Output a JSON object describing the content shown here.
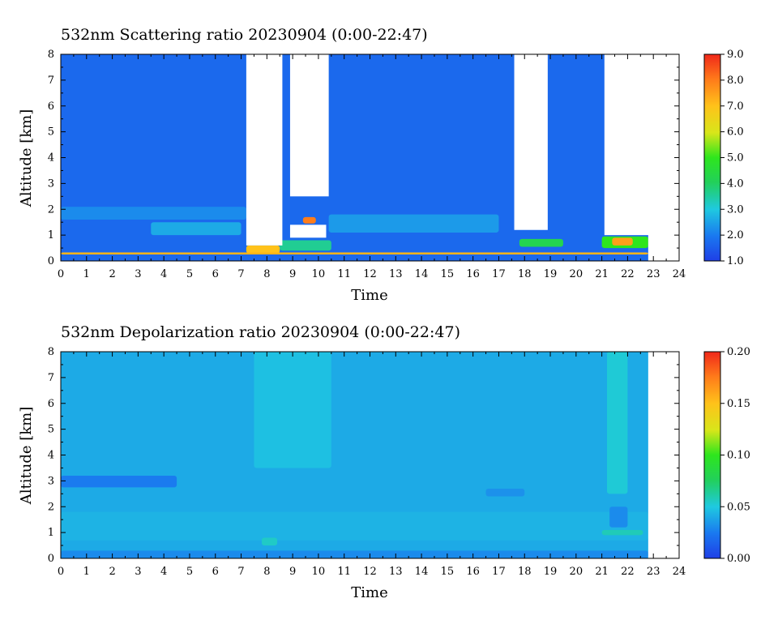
{
  "charts": [
    {
      "type": "heatmap",
      "title": "532nm Scattering ratio  20230904 (0:00-22:47)",
      "xlabel": "Time",
      "ylabel": "Altitude [km]",
      "x_range": [
        0,
        24
      ],
      "y_range": [
        0,
        8
      ],
      "x_ticks": [
        "0",
        "1",
        "2",
        "3",
        "4",
        "5",
        "6",
        "7",
        "8",
        "9",
        "10",
        "11",
        "12",
        "13",
        "14",
        "15",
        "16",
        "17",
        "18",
        "19",
        "20",
        "21",
        "22",
        "23",
        "24"
      ],
      "y_ticks": [
        "0",
        "1",
        "2",
        "3",
        "4",
        "5",
        "6",
        "7",
        "8"
      ],
      "colorbar": {
        "range": [
          1.0,
          9.0
        ],
        "ticks": [
          "1.0",
          "2.0",
          "3.0",
          "4.0",
          "5.0",
          "6.0",
          "7.0",
          "8.0",
          "9.0"
        ]
      },
      "background_value": 1.7,
      "no_data_regions": [
        {
          "t0": 7.2,
          "t1": 8.6,
          "z0": 0.6,
          "z1": 8.0
        },
        {
          "t0": 8.9,
          "t1": 10.4,
          "z0": 2.5,
          "z1": 8.0
        },
        {
          "t0": 8.9,
          "t1": 10.3,
          "z0": 0.9,
          "z1": 1.4
        },
        {
          "t0": 17.6,
          "t1": 18.9,
          "z0": 1.2,
          "z1": 8.0
        },
        {
          "t0": 21.1,
          "t1": 24.0,
          "z0": 1.0,
          "z1": 8.0
        },
        {
          "t0": 22.8,
          "t1": 24.0,
          "z0": 0.0,
          "z1": 8.0
        }
      ],
      "features": [
        {
          "t0": 0.0,
          "t1": 7.2,
          "z0": 1.6,
          "z1": 2.1,
          "value": 2.2
        },
        {
          "t0": 3.5,
          "t1": 7.0,
          "z0": 1.0,
          "z1": 1.5,
          "value": 2.6
        },
        {
          "t0": 10.4,
          "t1": 17.0,
          "z0": 1.1,
          "z1": 1.8,
          "value": 2.4
        },
        {
          "t0": 8.5,
          "t1": 10.5,
          "z0": 0.4,
          "z1": 0.8,
          "value": 3.6
        },
        {
          "t0": 17.8,
          "t1": 19.5,
          "z0": 0.55,
          "z1": 0.85,
          "value": 4.2
        },
        {
          "t0": 21.0,
          "t1": 22.8,
          "z0": 0.5,
          "z1": 0.95,
          "value": 5.0
        },
        {
          "t0": 21.4,
          "t1": 22.2,
          "z0": 0.6,
          "z1": 0.9,
          "value": 7.5
        },
        {
          "t0": 9.4,
          "t1": 9.9,
          "z0": 1.45,
          "z1": 1.7,
          "value": 8.0
        },
        {
          "t0": 7.2,
          "t1": 8.5,
          "z0": 0.3,
          "z1": 0.6,
          "value": 7.0
        },
        {
          "t0": 0.0,
          "t1": 22.8,
          "z0": 0.25,
          "z1": 0.33,
          "value": 7.2
        }
      ]
    },
    {
      "type": "heatmap",
      "title": "532nm Depolarization ratio  20230904 (0:00-22:47)",
      "xlabel": "Time",
      "ylabel": "Altitude [km]",
      "x_range": [
        0,
        24
      ],
      "y_range": [
        0,
        8
      ],
      "x_ticks": [
        "0",
        "1",
        "2",
        "3",
        "4",
        "5",
        "6",
        "7",
        "8",
        "9",
        "10",
        "11",
        "12",
        "13",
        "14",
        "15",
        "16",
        "17",
        "18",
        "19",
        "20",
        "21",
        "22",
        "23",
        "24"
      ],
      "y_ticks": [
        "0",
        "1",
        "2",
        "3",
        "4",
        "5",
        "6",
        "7",
        "8"
      ],
      "colorbar": {
        "range": [
          0.0,
          0.2
        ],
        "ticks": [
          "0.00",
          "0.05",
          "0.10",
          "0.15",
          "0.20"
        ]
      },
      "background_value": 0.04,
      "no_data_regions": [
        {
          "t0": 22.8,
          "t1": 24.0,
          "z0": 0.0,
          "z1": 8.0
        }
      ],
      "features": [
        {
          "t0": 0.0,
          "t1": 4.5,
          "z0": 2.75,
          "z1": 3.2,
          "value": 0.025
        },
        {
          "t0": 0.0,
          "t1": 22.8,
          "z0": 0.7,
          "z1": 1.8,
          "value": 0.043
        },
        {
          "t0": 7.5,
          "t1": 10.5,
          "z0": 3.5,
          "z1": 8.0,
          "value": 0.047
        },
        {
          "t0": 7.8,
          "t1": 8.4,
          "z0": 0.5,
          "z1": 0.8,
          "value": 0.055
        },
        {
          "t0": 21.2,
          "t1": 22.0,
          "z0": 2.5,
          "z1": 8.0,
          "value": 0.052
        },
        {
          "t0": 21.0,
          "t1": 22.6,
          "z0": 0.9,
          "z1": 1.1,
          "value": 0.058
        },
        {
          "t0": 21.3,
          "t1": 22.0,
          "z0": 1.2,
          "z1": 2.0,
          "value": 0.03
        },
        {
          "t0": 16.5,
          "t1": 18.0,
          "z0": 2.4,
          "z1": 2.7,
          "value": 0.032
        },
        {
          "t0": 0.0,
          "t1": 22.8,
          "z0": 0.0,
          "z1": 0.3,
          "value": 0.03
        }
      ]
    }
  ]
}
